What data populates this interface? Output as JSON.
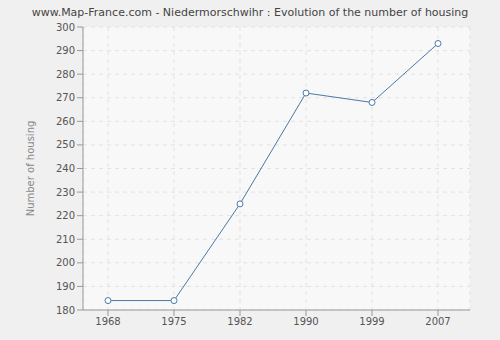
{
  "chart_data": {
    "type": "line",
    "title": "www.Map-France.com - Niedermorschwihr : Evolution of the number of housing",
    "y_label": "Number of housing",
    "categories": [
      "1968",
      "1975",
      "1982",
      "1990",
      "1999",
      "2007"
    ],
    "values": [
      184,
      184,
      225,
      272,
      268,
      293
    ],
    "color": "#4a78a8",
    "ylim": [
      180,
      300
    ],
    "yticks": [
      180,
      190,
      200,
      210,
      220,
      230,
      240,
      250,
      260,
      270,
      280,
      290,
      300
    ],
    "grid": true,
    "marker": "circle"
  }
}
